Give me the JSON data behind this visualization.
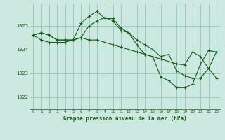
{
  "background_color": "#cce8e0",
  "grid_color": "#88ccbb",
  "line_color": "#1a5c1a",
  "marker_color": "#1a5c1a",
  "xlabel": "Graphe pression niveau de la mer (hPa)",
  "ylim": [
    1021.5,
    1025.9
  ],
  "xlim": [
    -0.5,
    23.5
  ],
  "yticks": [
    1022,
    1023,
    1024,
    1025
  ],
  "xticks": [
    0,
    1,
    2,
    3,
    4,
    5,
    6,
    7,
    8,
    9,
    10,
    11,
    12,
    13,
    14,
    15,
    16,
    17,
    18,
    19,
    20,
    21,
    22,
    23
  ],
  "series": [
    [
      1024.6,
      1024.7,
      1024.6,
      1024.4,
      1024.4,
      1024.4,
      1024.5,
      1025.0,
      1025.2,
      1025.35,
      1025.2,
      1024.8,
      1024.7,
      1024.4,
      1024.2,
      1024.0,
      1023.7,
      1023.8,
      1023.1,
      1022.9,
      1022.8,
      1022.8,
      1023.2,
      1023.9
    ],
    [
      1024.6,
      1024.7,
      1024.6,
      1024.4,
      1024.4,
      1024.4,
      1025.1,
      1025.4,
      1025.6,
      1025.3,
      1025.3,
      1024.9,
      1024.7,
      1024.2,
      1023.8,
      1023.7,
      1022.85,
      1022.7,
      1022.4,
      1022.4,
      1022.55,
      1023.4,
      1023.95,
      1023.9
    ],
    [
      1024.6,
      1024.4,
      1024.3,
      1024.3,
      1024.3,
      1024.4,
      1024.5,
      1024.4,
      1024.4,
      1024.3,
      1024.2,
      1024.1,
      1024.0,
      1023.9,
      1023.8,
      1023.7,
      1023.6,
      1023.5,
      1023.4,
      1023.35,
      1023.9,
      1023.7,
      1023.2,
      1022.8
    ]
  ]
}
